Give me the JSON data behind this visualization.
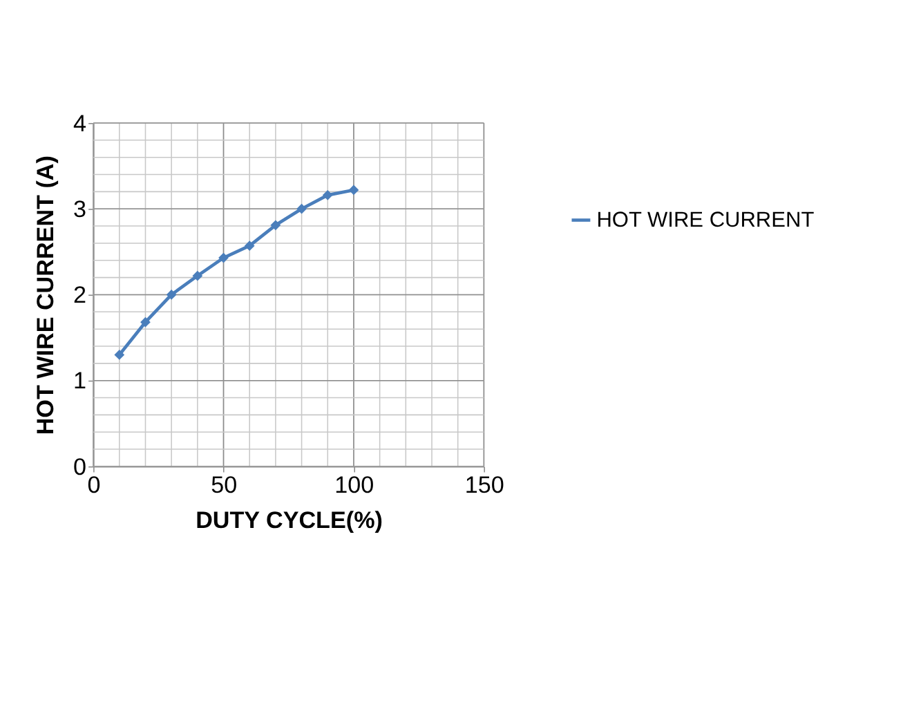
{
  "chart_data": {
    "type": "line",
    "xlabel": "DUTY CYCLE(%)",
    "ylabel": "HOT WIRE CURRENT (A)",
    "x": [
      10,
      20,
      30,
      40,
      50,
      60,
      70,
      80,
      90,
      100
    ],
    "series": [
      {
        "name": "HOT WIRE CURRENT",
        "color": "#4a7ebb",
        "values": [
          1.3,
          1.68,
          2.0,
          2.22,
          2.43,
          2.57,
          2.81,
          3.0,
          3.16,
          3.22
        ]
      }
    ],
    "xlim": [
      0,
      150
    ],
    "xticks": [
      0,
      50,
      100,
      150
    ],
    "ylim": [
      0,
      4
    ],
    "yticks": [
      0,
      1,
      2,
      3,
      4
    ],
    "grid": true,
    "legend": "right",
    "marker": "diamond",
    "line_style": "solid"
  }
}
